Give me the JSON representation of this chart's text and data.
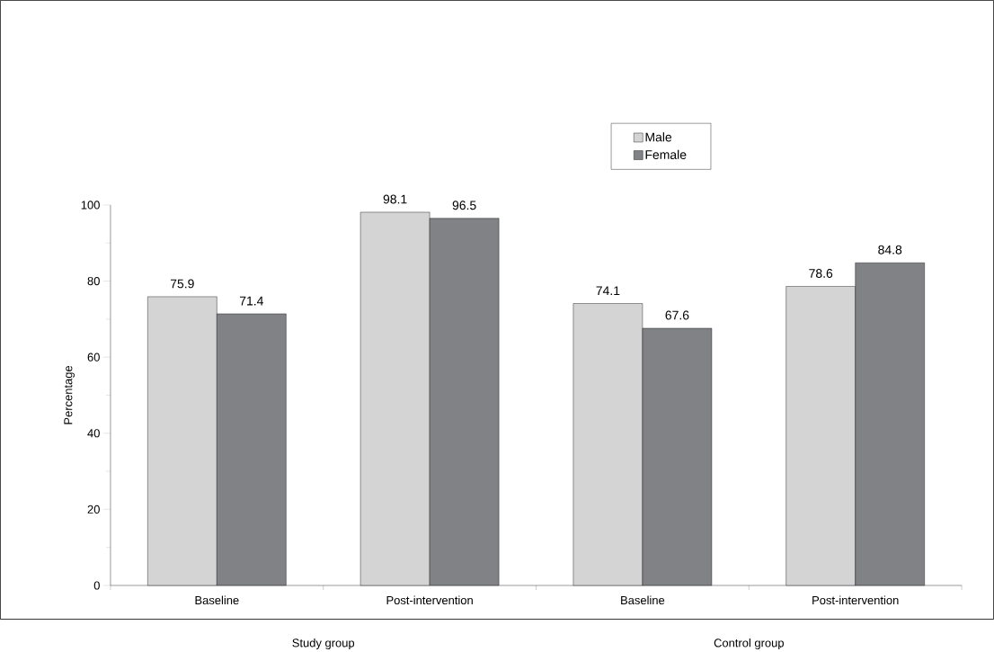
{
  "chart_data": {
    "type": "bar",
    "ylabel": "Percentage",
    "categories": [
      "Baseline",
      "Post-intervention",
      "Baseline",
      "Post-intervention"
    ],
    "series": [
      {
        "name": "Male",
        "color": "#d4d4d4",
        "values": [
          75.9,
          98.1,
          74.1,
          78.6
        ]
      },
      {
        "name": "Female",
        "color": "#808285",
        "values": [
          71.4,
          96.5,
          67.6,
          84.8
        ]
      }
    ],
    "ylim": [
      0,
      100
    ],
    "yticks": [
      0,
      20,
      40,
      60,
      80,
      100
    ],
    "data_labels": true,
    "legend": "top",
    "grid": false,
    "annotations": [
      "Study group",
      "Control group"
    ]
  }
}
